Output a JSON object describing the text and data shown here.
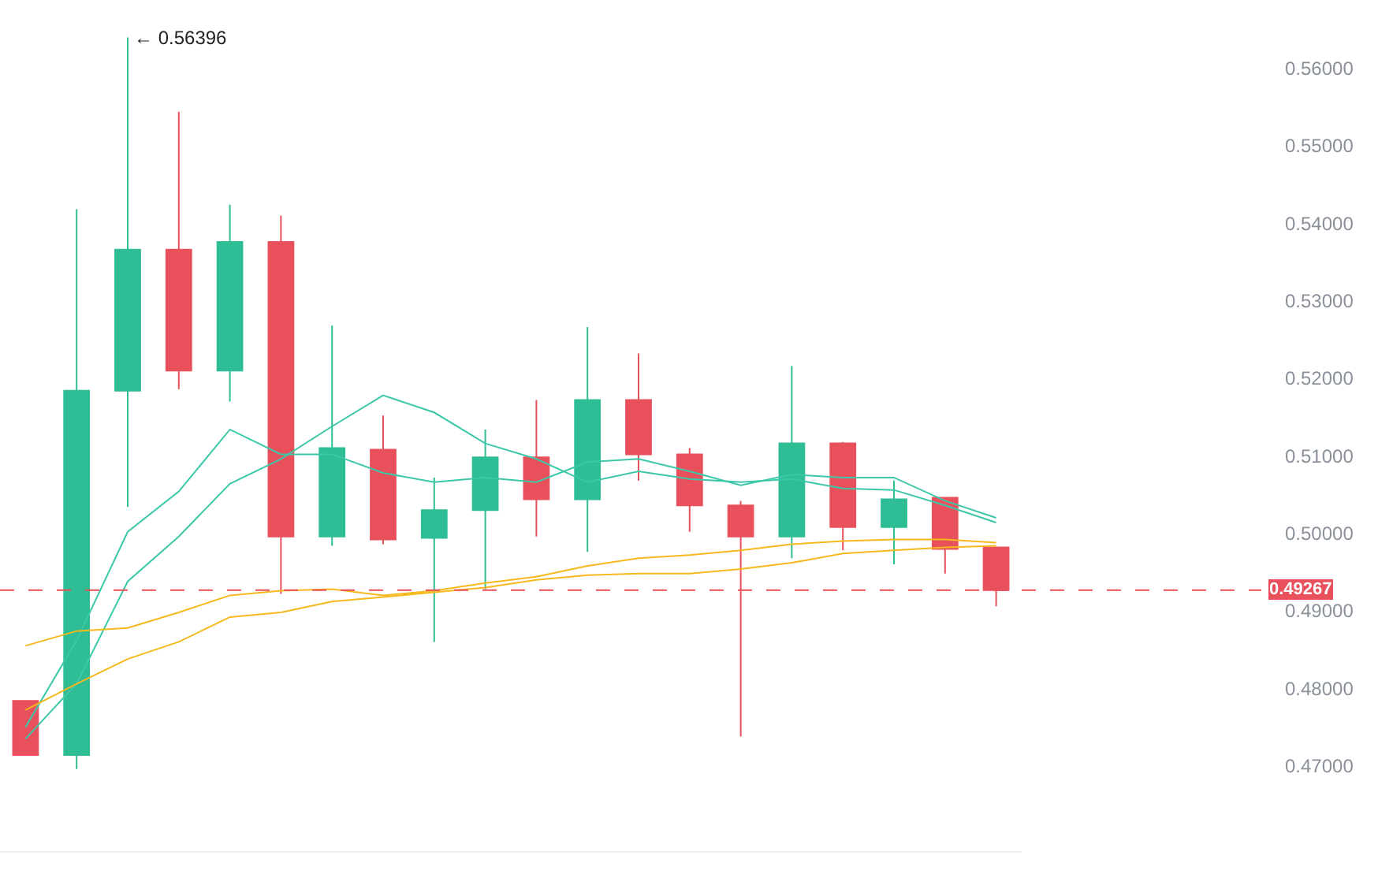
{
  "chart_data": {
    "type": "candlestick",
    "categories": [
      null,
      null,
      null,
      null,
      null,
      null,
      null,
      null,
      null,
      null,
      null,
      null,
      null,
      null,
      null,
      null,
      null,
      null,
      null,
      null
    ],
    "ohlc": [
      [
        0.4784,
        0.4784,
        0.4714,
        0.4714
      ],
      [
        0.4714,
        0.5418,
        0.4696,
        0.5184
      ],
      [
        0.5184,
        0.56396,
        0.5034,
        0.5366
      ],
      [
        0.5366,
        0.5544,
        0.5186,
        0.521
      ],
      [
        0.521,
        0.5424,
        0.517,
        0.5376
      ],
      [
        0.5376,
        0.541,
        0.4922,
        0.4996
      ],
      [
        0.4996,
        0.5268,
        0.4984,
        0.511
      ],
      [
        0.5108,
        0.5152,
        0.4986,
        0.4992
      ],
      [
        0.4994,
        0.5072,
        0.486,
        0.503
      ],
      [
        0.503,
        0.5134,
        0.4928,
        0.5098
      ],
      [
        0.5098,
        0.5172,
        0.4996,
        0.5044
      ],
      [
        0.5044,
        0.5266,
        0.4976,
        0.5172
      ],
      [
        0.5172,
        0.5232,
        0.5068,
        0.5102
      ],
      [
        0.5102,
        0.511,
        0.5002,
        0.5036
      ],
      [
        0.5036,
        0.5042,
        0.4738,
        0.4996
      ],
      [
        0.4996,
        0.5216,
        0.4968,
        0.5116
      ],
      [
        0.5116,
        0.5118,
        0.4978,
        0.5008
      ],
      [
        0.5008,
        0.5068,
        0.496,
        0.5044
      ],
      [
        0.5046,
        0.5046,
        0.4948,
        0.498
      ],
      [
        0.4982,
        0.4982,
        0.4906,
        0.49267
      ]
    ],
    "colors": [
      "#e8505b",
      "#2ebd94",
      "#2ebd94",
      "#e8505b",
      "#2ebd94",
      "#e8505b",
      "#2ebd94",
      "#e8505b",
      "#2ebd94",
      "#2ebd94",
      "#e8505b",
      "#2ebd94",
      "#e8505b",
      "#e8505b",
      "#e8505b",
      "#2ebd94",
      "#e8505b",
      "#2ebd94",
      "#e8505b",
      "#e8505b"
    ],
    "series": [
      {
        "type": "line",
        "color": "#3cc8a8",
        "values": [
          0.475,
          0.4862,
          0.5002,
          0.5054,
          0.5134,
          0.5102,
          0.5102,
          0.5078,
          0.5066,
          0.5072,
          0.5066,
          0.5092,
          0.5096,
          0.508,
          0.5062,
          0.5076,
          0.5072,
          0.5072,
          0.5042,
          0.502
        ]
      },
      {
        "type": "line",
        "color": "#3cc8a8",
        "values": [
          0.4735,
          0.4806,
          0.4938,
          0.4996,
          0.5064,
          0.5096,
          0.5138,
          0.5178,
          0.5156,
          0.5116,
          0.5096,
          0.5066,
          0.508,
          0.507,
          0.5066,
          0.507,
          0.5058,
          0.5056,
          0.5036,
          0.5014
        ]
      },
      {
        "type": "line",
        "color": "#f5b81d",
        "values": [
          0.4855,
          0.4874,
          0.4878,
          0.4898,
          0.492,
          0.4926,
          0.4928,
          0.492,
          0.4926,
          0.4936,
          0.4944,
          0.4958,
          0.4968,
          0.4972,
          0.4978,
          0.4986,
          0.499,
          0.4992,
          0.4992,
          0.4988
        ]
      },
      {
        "type": "line",
        "color": "#f5b81d",
        "values": [
          0.4772,
          0.4806,
          0.4838,
          0.486,
          0.4892,
          0.4898,
          0.4912,
          0.4918,
          0.4924,
          0.493,
          0.494,
          0.4946,
          0.4948,
          0.4948,
          0.4954,
          0.4962,
          0.4974,
          0.4978,
          0.4982,
          0.4984
        ]
      }
    ],
    "ylim": [
      0.459,
      0.5688
    ],
    "yticks": [
      {
        "value": 0.47,
        "label": "0.47000"
      },
      {
        "value": 0.48,
        "label": "0.48000"
      },
      {
        "value": 0.49,
        "label": "0.49000"
      },
      {
        "value": 0.5,
        "label": "0.50000"
      },
      {
        "value": 0.51,
        "label": "0.51000"
      },
      {
        "value": 0.52,
        "label": "0.52000"
      },
      {
        "value": 0.53,
        "label": "0.53000"
      },
      {
        "value": 0.54,
        "label": "0.54000"
      },
      {
        "value": 0.55,
        "label": "0.55000"
      },
      {
        "value": 0.56,
        "label": "0.56000"
      }
    ],
    "tick_labels": "y",
    "ref_lines": [
      {
        "axis": "y",
        "value": 0.49267,
        "label": "0.49267",
        "color": "#e8505b",
        "line_style": "dashed"
      }
    ],
    "annotations": [
      "← 0.56396"
    ]
  }
}
